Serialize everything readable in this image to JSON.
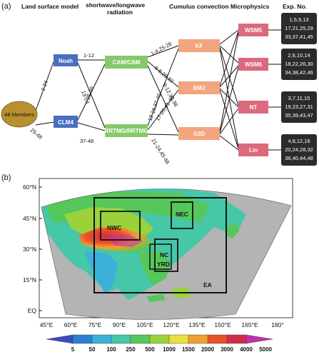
{
  "panel_a": {
    "label": "(a)",
    "headers": {
      "land": "Land surface model",
      "radiation_1": "shortwave/longwave",
      "radiation_2": "radiation",
      "cumulus": "Cumulus convection",
      "micro": "Microphysics",
      "exp": "Exp. No."
    },
    "members": "48 Members",
    "land_models": [
      "Noah",
      "CLM4"
    ],
    "radiation": [
      "CAM/CAM",
      "RRTMG/RRTMG"
    ],
    "cumulus": [
      "KF",
      "BMJ",
      "G3D"
    ],
    "microphysics": [
      "WSM5",
      "WSM6",
      "NT",
      "Lin"
    ],
    "edge_labels": {
      "members_noah": "1-24",
      "members_clm4": "25-48",
      "noah_cam": "1-12",
      "noah_rrtmg": "13-24",
      "clm4_cam": "25-36",
      "clm4_rrtmg": "37-48",
      "cam_kf": "1-4,25-28",
      "cam_bmj": "5-8,29-32",
      "cam_g3d": "9-12,33-36",
      "rrtmg_kf": "13-16,37-40",
      "rrtmg_bmj": "17-20,41-44",
      "rrtmg_g3d": "21-24,45-48"
    },
    "exp_numbers": [
      [
        "1,5,9,13",
        "17,21,25,29",
        "33,37,41,45"
      ],
      [
        "2,6,10,14",
        "18,22,26,30",
        "34,38,42,46"
      ],
      [
        "3,7,11,15",
        "19,23,27,31",
        "35,39,43,47"
      ],
      [
        "4,8,12,16",
        "20,24,28,32",
        "36,40,44,48"
      ]
    ],
    "colors": {
      "members": "#b8902e",
      "land": "#4a6fc1",
      "radiation": "#86c96a",
      "cumulus": "#f2a57e",
      "micro": "#db6b7c",
      "exp": "#2b2b2b"
    }
  },
  "panel_b": {
    "label": "(b)",
    "regions": [
      "NWC",
      "NEC",
      "NC",
      "YRD",
      "EA"
    ],
    "lat_labels": [
      "60°N",
      "45°N",
      "30°N",
      "15°N",
      "EQ"
    ],
    "lon_labels": [
      "45°E",
      "60°E",
      "75°E",
      "90°E",
      "105°E",
      "120°E",
      "135°E",
      "150°E",
      "165°E",
      "180°"
    ],
    "colorbar_labels": [
      "5",
      "50",
      "100",
      "250",
      "500",
      "1000",
      "1500",
      "2000",
      "3000",
      "4000",
      "5000"
    ],
    "colorbar_colors": [
      "#3b4cc0",
      "#2f7fd1",
      "#3bb0d9",
      "#45c7a8",
      "#56c75a",
      "#9bd23c",
      "#e8e13a",
      "#f0a032",
      "#e8502a",
      "#d42a4a",
      "#c22fa8"
    ],
    "ocean_color": "#b4b4b4"
  }
}
